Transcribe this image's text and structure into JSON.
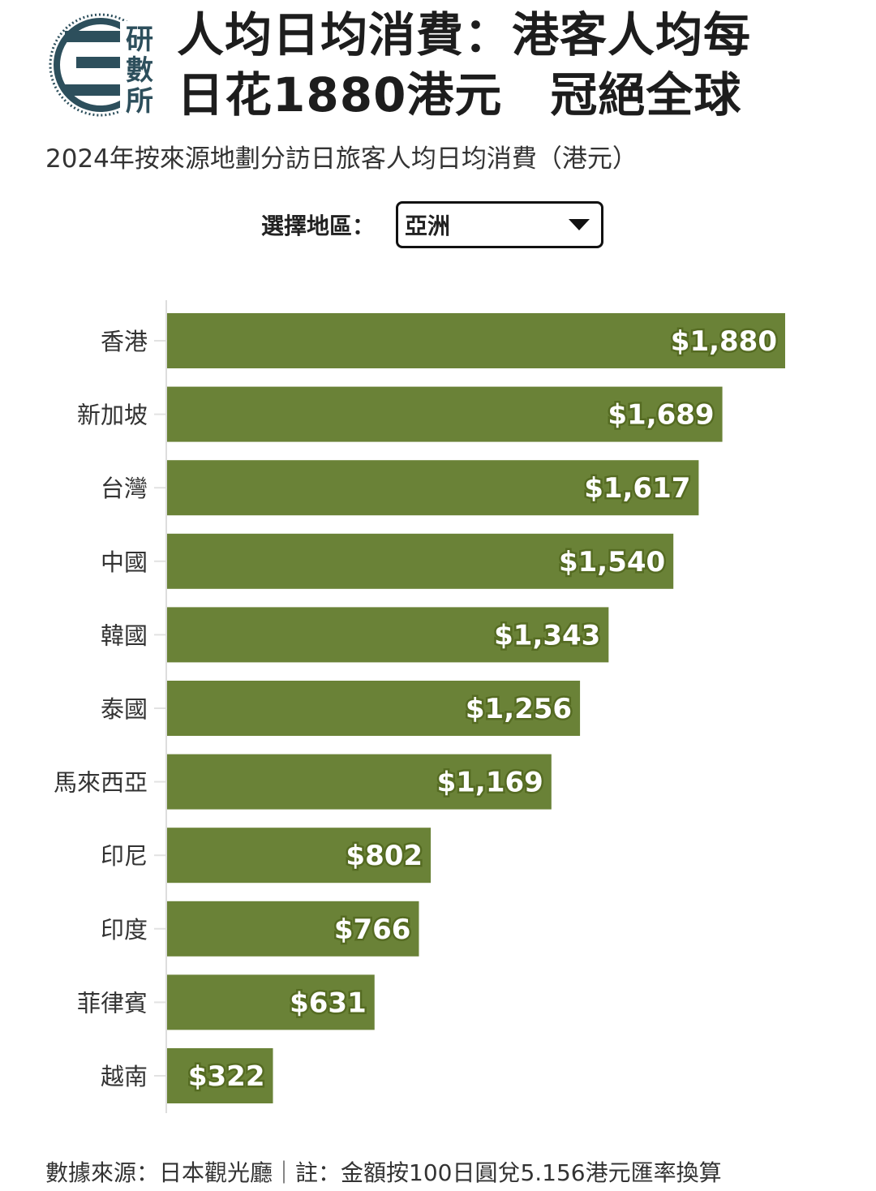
{
  "header": {
    "logo_text": [
      "研",
      "數",
      "所"
    ],
    "title_line1": "人均日均消費：港客人均每",
    "title_line2": "日花1880港元　冠絕全球",
    "subtitle": "2024年按來源地劃分訪日旅客人均日均消費（港元）"
  },
  "selector": {
    "label": "選擇地區：",
    "value": "亞洲"
  },
  "colors": {
    "bar": "#6a8237",
    "label_outline": "#556b22"
  },
  "chart_data": {
    "type": "bar",
    "orientation": "horizontal",
    "title": "2024年按來源地劃分訪日旅客人均日均消費（港元）",
    "categories": [
      "香港",
      "新加坡",
      "台灣",
      "中國",
      "韓國",
      "泰國",
      "馬來西亞",
      "印尼",
      "印度",
      "菲律賓",
      "越南"
    ],
    "values": [
      1880,
      1689,
      1617,
      1540,
      1343,
      1256,
      1169,
      802,
      766,
      631,
      322
    ],
    "value_labels": [
      "$1,880",
      "$1,689",
      "$1,617",
      "$1,540",
      "$1,343",
      "$1,256",
      "$1,169",
      "$802",
      "$766",
      "$631",
      "$322"
    ],
    "xlim": [
      0,
      1880
    ],
    "grid": false,
    "legend": "none"
  },
  "footer": {
    "text": "數據來源：日本觀光廳｜註：金額按100日圓兌5.156港元匯率換算"
  }
}
